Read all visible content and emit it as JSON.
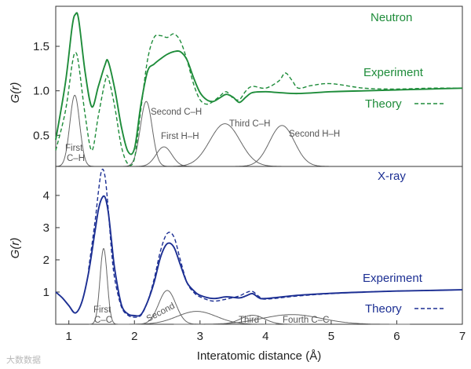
{
  "chart_data": [
    {
      "type": "line",
      "title": "Neutron",
      "ylabel": "G(r)",
      "xlabel": "",
      "xlim": [
        0.8,
        7.0
      ],
      "ylim": [
        0.15,
        1.95
      ],
      "yticks": [
        "0.5",
        "1.0",
        "1.5"
      ],
      "colors": {
        "experiment": "#1e8c3a",
        "theory": "#1e8c3a",
        "partials": "#666666"
      },
      "legend": {
        "experiment": "Experiment",
        "theory": "Theory",
        "placement": "right"
      },
      "series": [
        {
          "name": "Experiment",
          "style": "solid",
          "x": [
            0.8,
            0.95,
            1.05,
            1.1,
            1.15,
            1.25,
            1.35,
            1.45,
            1.55,
            1.6,
            1.7,
            1.8,
            1.9,
            2.0,
            2.1,
            2.2,
            2.3,
            2.4,
            2.5,
            2.6,
            2.7,
            2.8,
            2.9,
            3.0,
            3.1,
            3.2,
            3.3,
            3.4,
            3.5,
            3.6,
            3.7,
            3.8,
            4.0,
            4.2,
            4.5,
            5.0,
            5.5,
            6.0,
            6.5,
            7.0
          ],
          "y": [
            0.45,
            1.1,
            1.72,
            1.86,
            1.8,
            1.2,
            0.82,
            1.05,
            1.29,
            1.33,
            1.02,
            0.6,
            0.32,
            0.35,
            0.85,
            1.22,
            1.3,
            1.36,
            1.41,
            1.44,
            1.44,
            1.35,
            1.15,
            0.98,
            0.9,
            0.88,
            0.92,
            0.96,
            0.93,
            0.87,
            0.93,
            0.98,
            0.99,
            0.98,
            0.97,
            0.99,
            1.0,
            1.01,
            1.02,
            1.03
          ]
        },
        {
          "name": "Theory",
          "style": "dashed",
          "x": [
            0.8,
            0.95,
            1.05,
            1.1,
            1.15,
            1.25,
            1.35,
            1.45,
            1.55,
            1.6,
            1.7,
            1.8,
            1.9,
            2.0,
            2.1,
            2.2,
            2.3,
            2.4,
            2.5,
            2.6,
            2.7,
            2.8,
            2.9,
            3.0,
            3.1,
            3.2,
            3.3,
            3.4,
            3.5,
            3.6,
            3.7,
            3.8,
            4.0,
            4.2,
            4.3,
            4.4,
            4.5,
            4.7,
            5.0,
            5.5,
            6.0,
            6.5,
            7.0
          ],
          "y": [
            0.33,
            0.78,
            1.3,
            1.43,
            1.3,
            0.72,
            0.33,
            0.72,
            1.1,
            1.15,
            0.82,
            0.38,
            0.18,
            0.24,
            0.8,
            1.35,
            1.6,
            1.62,
            1.6,
            1.64,
            1.56,
            1.35,
            1.08,
            0.9,
            0.85,
            0.88,
            0.94,
            0.99,
            0.92,
            0.9,
            1.0,
            1.05,
            1.03,
            1.11,
            1.2,
            1.12,
            1.03,
            1.06,
            1.08,
            1.03,
            1.02,
            1.03,
            1.03
          ]
        }
      ],
      "partials": [
        {
          "label": "First C–H",
          "center": 1.09,
          "height": 0.8,
          "width": 0.075
        },
        {
          "label": "Second C–H",
          "center": 2.18,
          "height": 0.73,
          "width": 0.09
        },
        {
          "label": "First H–H",
          "center": 2.45,
          "height": 0.22,
          "width": 0.12
        },
        {
          "label": "Third C–H",
          "center": 3.38,
          "height": 0.48,
          "width": 0.23
        },
        {
          "label": "Second H–H",
          "center": 4.25,
          "height": 0.46,
          "width": 0.19
        }
      ]
    },
    {
      "type": "line",
      "title": "X-ray",
      "ylabel": "G(r)",
      "xlabel": "Interatomic distance (Å)",
      "xlim": [
        0.8,
        7.0
      ],
      "ylim": [
        0.0,
        4.9
      ],
      "yticks": [
        "1",
        "2",
        "3",
        "4"
      ],
      "xticks": [
        "1",
        "2",
        "3",
        "4",
        "5",
        "6",
        "7"
      ],
      "colors": {
        "experiment": "#1c2f93",
        "theory": "#1c2f93",
        "partials": "#666666"
      },
      "legend": {
        "experiment": "Experiment",
        "theory": "Theory",
        "placement": "right"
      },
      "series": [
        {
          "name": "Experiment",
          "style": "solid",
          "x": [
            0.8,
            0.9,
            1.0,
            1.1,
            1.2,
            1.3,
            1.4,
            1.45,
            1.5,
            1.55,
            1.6,
            1.65,
            1.7,
            1.8,
            1.9,
            2.0,
            2.1,
            2.2,
            2.3,
            2.4,
            2.5,
            2.6,
            2.7,
            2.8,
            2.9,
            3.0,
            3.2,
            3.4,
            3.6,
            3.7,
            3.8,
            3.9,
            4.0,
            4.5,
            5.0,
            5.5,
            6.0,
            6.5,
            7.0
          ],
          "y": [
            1.0,
            0.82,
            0.58,
            0.35,
            0.7,
            1.6,
            2.9,
            3.55,
            3.9,
            3.95,
            3.5,
            2.6,
            1.7,
            0.62,
            0.32,
            0.27,
            0.3,
            0.7,
            1.3,
            2.1,
            2.5,
            2.4,
            1.85,
            1.3,
            1.05,
            0.9,
            0.8,
            0.85,
            0.82,
            0.88,
            0.95,
            0.82,
            0.8,
            0.9,
            0.96,
            1.0,
            1.03,
            1.05,
            1.07
          ]
        },
        {
          "name": "Theory",
          "style": "dashed",
          "x": [
            1.3,
            1.4,
            1.45,
            1.5,
            1.55,
            1.6,
            1.65,
            1.7,
            1.8,
            1.9,
            2.0,
            2.1,
            2.2,
            2.3,
            2.4,
            2.5,
            2.6,
            2.7,
            2.8,
            2.9,
            3.0,
            3.2,
            3.4,
            3.6,
            3.7,
            3.8,
            3.9,
            4.0,
            4.5,
            5.0,
            5.5,
            6.0,
            6.5,
            7.0
          ],
          "y": [
            1.7,
            3.2,
            4.1,
            4.78,
            4.6,
            3.6,
            2.3,
            1.4,
            0.55,
            0.28,
            0.22,
            0.28,
            0.7,
            1.4,
            2.3,
            2.82,
            2.72,
            2.0,
            1.3,
            1.0,
            0.85,
            0.72,
            0.78,
            0.88,
            0.98,
            1.02,
            0.86,
            0.78,
            0.88,
            0.95,
            1.0,
            1.03,
            1.05,
            1.07
          ]
        }
      ],
      "partials": [
        {
          "label": "First C–C",
          "center": 1.53,
          "height": 2.35,
          "width": 0.055
        },
        {
          "label": "Second",
          "center": 2.5,
          "height": 1.05,
          "width": 0.13
        },
        {
          "label": "Third",
          "center": 3.8,
          "height": 0.28,
          "width": 0.18
        },
        {
          "label": "Fourth C–C",
          "center": 4.4,
          "height": 0.3,
          "width": 0.45
        },
        {
          "label": "",
          "center": 2.95,
          "height": 0.4,
          "width": 0.3
        }
      ]
    }
  ],
  "annotations": {
    "neutron": {
      "first_ch_1": "First",
      "first_ch_2": "C–H",
      "second_ch": "Second C–H",
      "first_hh": "First H–H",
      "third_ch": "Third C–H",
      "second_hh": "Second H–H"
    },
    "xray": {
      "first_cc_1": "First",
      "first_cc_2": "C–C",
      "second": "Second",
      "third": "Third",
      "fourth_cc": "Fourth C–C"
    }
  },
  "watermark": "大数数据"
}
